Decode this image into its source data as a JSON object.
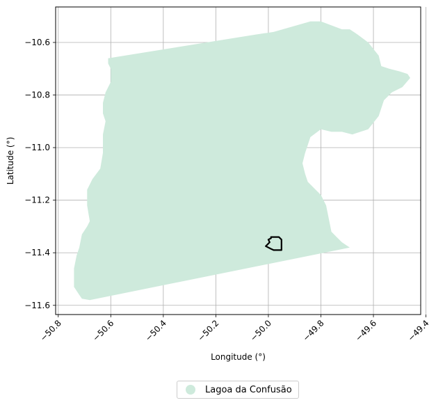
{
  "chart_data": {
    "type": "map",
    "xlabel": "Longitude (°)",
    "ylabel": "Latitude (°)",
    "xlim": [
      -50.81,
      -49.42
    ],
    "ylim": [
      -11.635,
      -10.465
    ],
    "xticks": [
      -50.8,
      -50.6,
      -50.4,
      -50.2,
      -50.0,
      -49.8,
      -49.6,
      -49.4
    ],
    "xtick_labels": [
      "−50.8",
      "−50.6",
      "−50.4",
      "−50.2",
      "−50.0",
      "−49.8",
      "−49.6",
      "−49.4"
    ],
    "yticks": [
      -10.6,
      -10.8,
      -11.0,
      -11.2,
      -11.4,
      -11.6
    ],
    "ytick_labels": [
      "−10.6",
      "−10.8",
      "−11.0",
      "−11.2",
      "−11.4",
      "−11.6"
    ],
    "grid": true,
    "legend_position": "bottom-center",
    "fill_color": "#ceeadc",
    "outline_color": "#000000",
    "region": {
      "name": "Lagoa da Confusão",
      "polygon": [
        [
          -50.61,
          -10.66
        ],
        [
          -50.05,
          -10.57
        ],
        [
          -49.98,
          -10.56
        ],
        [
          -49.84,
          -10.52
        ],
        [
          -49.8,
          -10.52
        ],
        [
          -49.72,
          -10.55
        ],
        [
          -49.69,
          -10.55
        ],
        [
          -49.66,
          -10.57
        ],
        [
          -49.62,
          -10.6
        ],
        [
          -49.58,
          -10.65
        ],
        [
          -49.57,
          -10.69
        ],
        [
          -49.54,
          -10.7
        ],
        [
          -49.5,
          -10.71
        ],
        [
          -49.47,
          -10.72
        ],
        [
          -49.46,
          -10.735
        ],
        [
          -49.49,
          -10.77
        ],
        [
          -49.53,
          -10.79
        ],
        [
          -49.56,
          -10.82
        ],
        [
          -49.58,
          -10.88
        ],
        [
          -49.62,
          -10.93
        ],
        [
          -49.68,
          -10.95
        ],
        [
          -49.72,
          -10.94
        ],
        [
          -49.76,
          -10.94
        ],
        [
          -49.8,
          -10.93
        ],
        [
          -49.84,
          -10.96
        ],
        [
          -49.86,
          -11.02
        ],
        [
          -49.87,
          -11.06
        ],
        [
          -49.86,
          -11.1
        ],
        [
          -49.85,
          -11.13
        ],
        [
          -49.82,
          -11.16
        ],
        [
          -49.8,
          -11.18
        ],
        [
          -49.78,
          -11.22
        ],
        [
          -49.77,
          -11.27
        ],
        [
          -49.76,
          -11.32
        ],
        [
          -49.74,
          -11.34
        ],
        [
          -49.72,
          -11.36
        ],
        [
          -49.69,
          -11.38
        ],
        [
          -50.68,
          -11.58
        ],
        [
          -50.71,
          -11.575
        ],
        [
          -50.72,
          -11.56
        ],
        [
          -50.74,
          -11.53
        ],
        [
          -50.74,
          -11.46
        ],
        [
          -50.73,
          -11.41
        ],
        [
          -50.72,
          -11.38
        ],
        [
          -50.71,
          -11.33
        ],
        [
          -50.69,
          -11.3
        ],
        [
          -50.68,
          -11.28
        ],
        [
          -50.69,
          -11.22
        ],
        [
          -50.69,
          -11.16
        ],
        [
          -50.67,
          -11.12
        ],
        [
          -50.64,
          -11.08
        ],
        [
          -50.63,
          -11.02
        ],
        [
          -50.63,
          -10.95
        ],
        [
          -50.62,
          -10.9
        ],
        [
          -50.63,
          -10.87
        ],
        [
          -50.63,
          -10.83
        ],
        [
          -50.62,
          -10.79
        ],
        [
          -50.6,
          -10.75
        ],
        [
          -50.6,
          -10.7
        ],
        [
          -50.61,
          -10.68
        ]
      ]
    },
    "inset_outline": [
      [
        -49.99,
        -11.34
      ],
      [
        -49.96,
        -11.34
      ],
      [
        -49.95,
        -11.35
      ],
      [
        -49.95,
        -11.39
      ],
      [
        -49.98,
        -11.39
      ],
      [
        -49.99,
        -11.385
      ],
      [
        -50.01,
        -11.375
      ],
      [
        -49.995,
        -11.36
      ],
      [
        -50.0,
        -11.35
      ],
      [
        -49.99,
        -11.345
      ]
    ]
  },
  "legend": {
    "label": "Lagoa da Confusão",
    "marker_color": "#ceeadc"
  }
}
